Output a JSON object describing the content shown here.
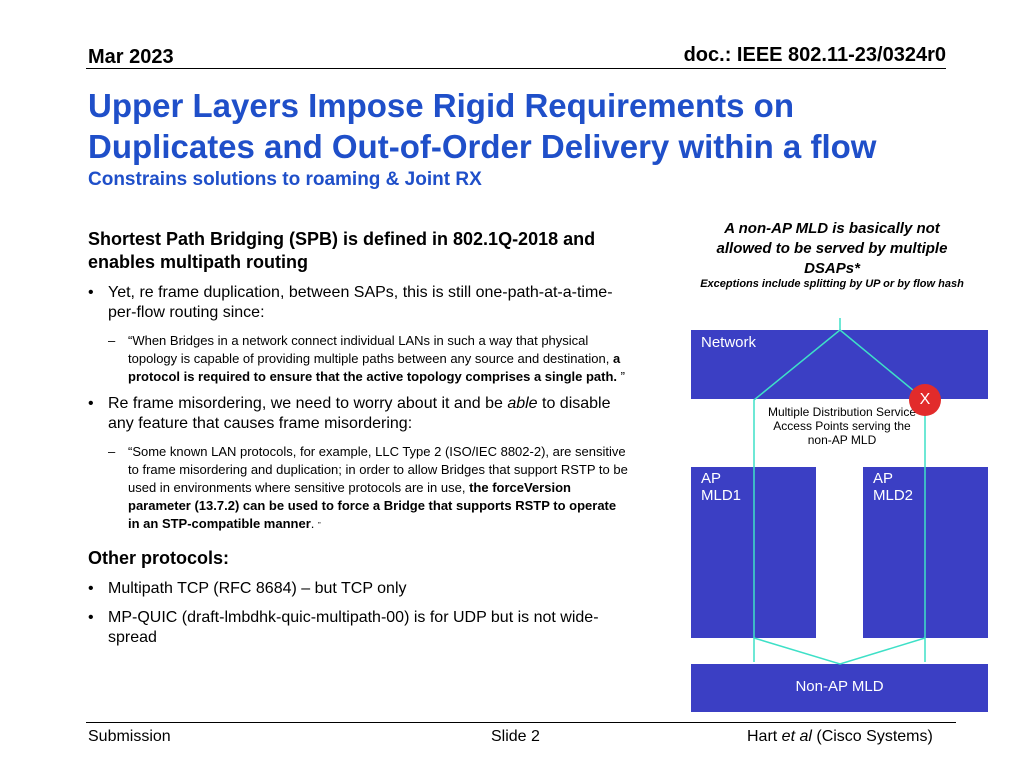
{
  "header": {
    "date": "Mar 2023",
    "doc": "doc.: IEEE 802.11-23/0324r0"
  },
  "title": {
    "line1": "Upper Layers Impose Rigid Requirements on",
    "line2": "Duplicates and Out-of-Order Delivery within a flow",
    "subtitle": "Constrains solutions to roaming & Joint RX"
  },
  "body": {
    "spb_heading": "Shortest Path Bridging (SPB) is defined in 802.1Q-2018 and enables multipath routing",
    "bullet_dup": "Yet, re frame duplication, between SAPs, this is still one-path-at-a-time-per-flow routing since:",
    "quote1_a": "“When Bridges in a network connect individual LANs in such a way that physical topology is capable of providing multiple paths between any source and destination, ",
    "quote1_b": "a protocol is required to ensure that the active topology comprises a single path.",
    "quote1_c": " ”",
    "bullet_misorder_a": "Re frame misordering, we need to worry about it and be ",
    "bullet_misorder_em": "able",
    "bullet_misorder_b": " to disable any feature that causes frame misordering:",
    "quote2_a": "“Some known LAN protocols, for example, LLC Type 2 (ISO/IEC 8802-2), are sensitive to frame misordering and duplication; in order to allow Bridges that support RSTP to be used in environments where sensitive protocols are in use, ",
    "quote2_b": "the forceVersion parameter (13.7.2) can be used to force a Bridge that supports RSTP to operate in an STP-compatible manner",
    "quote2_c": ". ",
    "quote2_d": "”",
    "other_heading": "Other protocols:",
    "other_items": [
      "Multipath TCP (RFC 8684) – but TCP only",
      "MP-QUIC (draft-lmbdhk-quic-multipath-00) is for UDP but is not wide-spread"
    ],
    "bullet_marker": "•",
    "dash_marker": "–"
  },
  "diagram": {
    "title": "A non-AP MLD is basically not allowed to be served by multiple DSAPs*",
    "subtitle": "Exceptions include splitting by UP or by flow hash",
    "network": "Network",
    "mdsap": "Multiple Distribution Service Access Points serving the non-AP MLD",
    "x_mark": "X",
    "ap1_line1": "AP",
    "ap1_line2": "MLD1",
    "ap2_line1": "AP",
    "ap2_line2": "MLD2",
    "non_ap": "Non-AP MLD",
    "colors": {
      "box": "#3b3fc4",
      "line": "#3ee0c7",
      "x": "#e22b2b",
      "title": "#1f4fc9"
    }
  },
  "footer": {
    "left": "Submission",
    "center": "Slide 2",
    "right_a": "Hart ",
    "right_em": "et al",
    "right_b": " (Cisco Systems)"
  }
}
